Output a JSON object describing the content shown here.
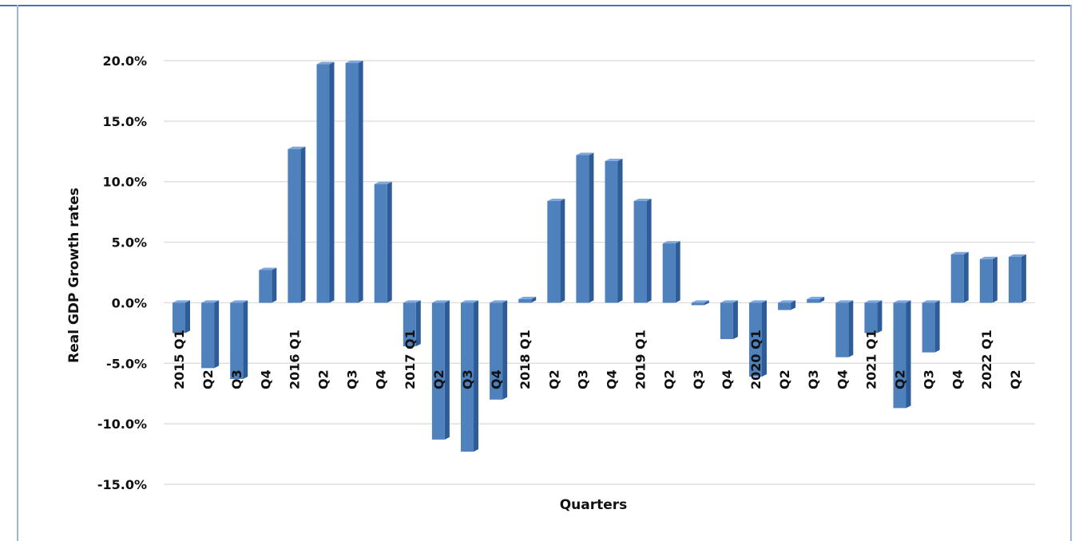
{
  "chart_data": {
    "type": "bar",
    "title": "",
    "xlabel": "Quarters",
    "ylabel": "Real GDP Growth rates",
    "ylim": [
      -15,
      20
    ],
    "yticks": [
      "20.0%",
      "15.0%",
      "10.0%",
      "5.0%",
      "0.0%",
      "-5.0%",
      "-10.0%",
      "-15.0%"
    ],
    "ytick_values": [
      20,
      15,
      10,
      5,
      0,
      -5,
      -10,
      -15
    ],
    "grid": true,
    "legend": "none",
    "bar_color": "#4f81bd",
    "categories": [
      "2015 Q1",
      "Q2",
      "Q3",
      "Q4",
      "2016 Q1",
      "Q2",
      "Q3",
      "Q4",
      "2017 Q1",
      "Q2",
      "Q3",
      "Q4",
      "2018 Q1",
      "Q2",
      "Q3",
      "Q4",
      "2019 Q1",
      "Q2",
      "Q3",
      "Q4",
      "2020 Q1",
      "Q2",
      "Q3",
      "Q4",
      "2021 Q1",
      "Q2",
      "Q3",
      "Q4",
      "2022 Q1",
      "Q2"
    ],
    "values": [
      -2.5,
      -5.4,
      -6.3,
      2.7,
      12.7,
      19.7,
      19.8,
      9.8,
      -3.6,
      -11.3,
      -12.3,
      -8.0,
      0.3,
      8.4,
      12.2,
      11.7,
      8.4,
      4.9,
      -0.2,
      -3.0,
      -6.1,
      -0.6,
      0.3,
      -4.5,
      -2.5,
      -8.7,
      -4.1,
      4.0,
      3.6,
      3.8
    ]
  }
}
